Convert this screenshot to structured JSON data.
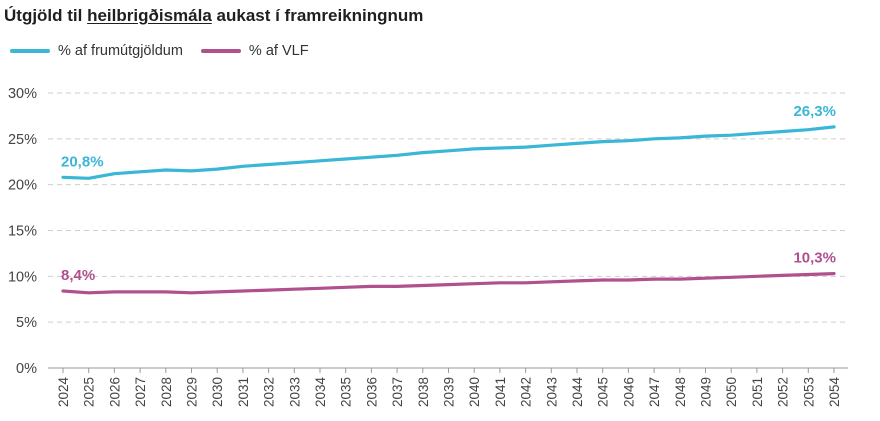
{
  "title": {
    "before": "Útgjöld til ",
    "underlined": "heilbrigðismála",
    "after": " aukast í framreikningnum"
  },
  "legend": [
    {
      "label": "% af frumútgjöldum",
      "color": "#3ab6d6"
    },
    {
      "label": "% af VLF",
      "color": "#b0508d"
    }
  ],
  "chart_data": {
    "type": "line",
    "x": [
      "2024",
      "2025",
      "2026",
      "2027",
      "2028",
      "2029",
      "2030",
      "2031",
      "2032",
      "2033",
      "2034",
      "2035",
      "2036",
      "2037",
      "2038",
      "2039",
      "2040",
      "2041",
      "2042",
      "2043",
      "2044",
      "2045",
      "2046",
      "2047",
      "2048",
      "2049",
      "2050",
      "2051",
      "2052",
      "2053",
      "2054"
    ],
    "ylim": [
      0,
      30
    ],
    "yticks": [
      "0%",
      "5%",
      "10%",
      "15%",
      "20%",
      "25%",
      "30%"
    ],
    "grid": true,
    "legend_position": "top-left",
    "series": [
      {
        "name": "% af frumútgjöldum",
        "color": "#3ab6d6",
        "values": [
          20.8,
          20.7,
          21.2,
          21.4,
          21.6,
          21.5,
          21.7,
          22.0,
          22.2,
          22.4,
          22.6,
          22.8,
          23.0,
          23.2,
          23.5,
          23.7,
          23.9,
          24.0,
          24.1,
          24.3,
          24.5,
          24.7,
          24.8,
          25.0,
          25.1,
          25.3,
          25.4,
          25.6,
          25.8,
          26.0,
          26.3
        ],
        "labels": [
          {
            "index": 0,
            "text": "20,8%"
          },
          {
            "index": 30,
            "text": "26,3%"
          }
        ]
      },
      {
        "name": "% af VLF",
        "color": "#b0508d",
        "values": [
          8.4,
          8.2,
          8.3,
          8.3,
          8.3,
          8.2,
          8.3,
          8.4,
          8.5,
          8.6,
          8.7,
          8.8,
          8.9,
          8.9,
          9.0,
          9.1,
          9.2,
          9.3,
          9.3,
          9.4,
          9.5,
          9.6,
          9.6,
          9.7,
          9.7,
          9.8,
          9.9,
          10.0,
          10.1,
          10.2,
          10.3
        ],
        "labels": [
          {
            "index": 0,
            "text": "8,4%"
          },
          {
            "index": 30,
            "text": "10,3%"
          }
        ]
      }
    ]
  }
}
